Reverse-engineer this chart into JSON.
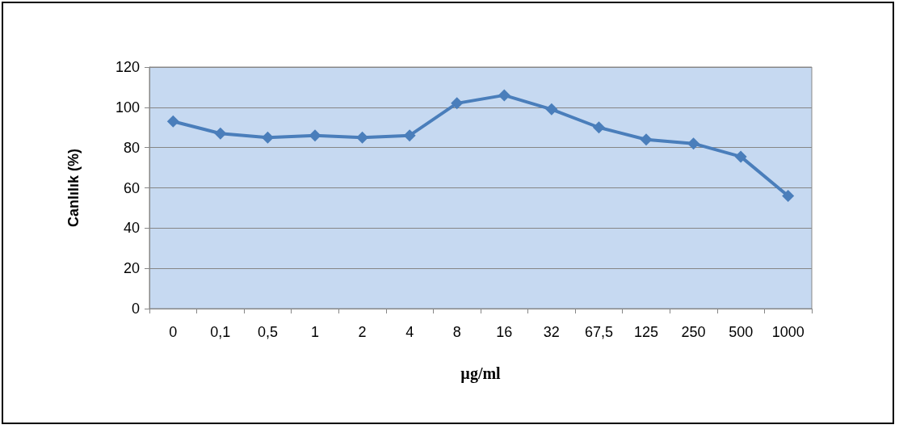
{
  "chart_data": {
    "type": "line",
    "xlabel": "µg/ml",
    "ylabel": "Canlılık (%)",
    "categories": [
      "0",
      "0,1",
      "0,5",
      "1",
      "2",
      "4",
      "8",
      "16",
      "32",
      "67,5",
      "125",
      "250",
      "500",
      "1000"
    ],
    "series": [
      {
        "color": "#4a7ebb",
        "values": [
          93,
          87,
          85,
          86,
          85,
          86,
          102,
          106,
          99,
          90,
          84,
          82,
          75.5,
          56
        ]
      }
    ],
    "ylim": [
      0,
      120
    ],
    "yticks": [
      0,
      20,
      40,
      60,
      80,
      100,
      120
    ],
    "grid": "y",
    "marker": "diamond",
    "line_style": "solid"
  }
}
